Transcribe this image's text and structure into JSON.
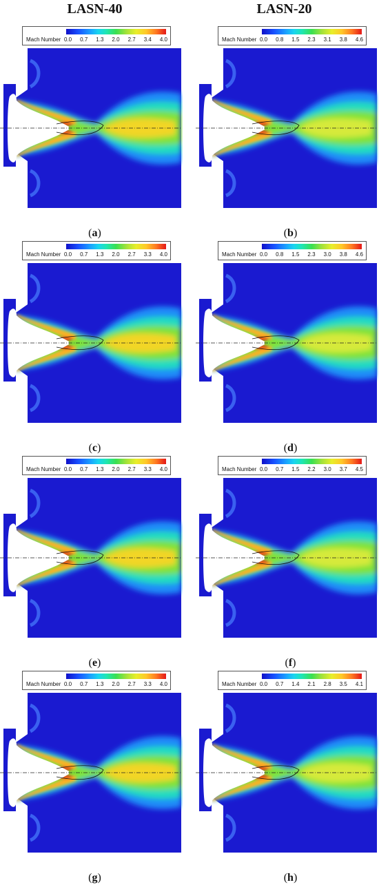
{
  "headers": [
    "LASN-40",
    "LASN-20"
  ],
  "colorbar_title": "Mach Number",
  "panels": [
    {
      "caption": "a",
      "ticks": [
        "0.0",
        "0.7",
        "1.3",
        "2.0",
        "2.7",
        "3.4",
        "4.0"
      ]
    },
    {
      "caption": "b",
      "ticks": [
        "0.0",
        "0.8",
        "1.5",
        "2.3",
        "3.1",
        "3.8",
        "4.6"
      ]
    },
    {
      "caption": "c",
      "ticks": [
        "0.0",
        "0.7",
        "1.3",
        "2.0",
        "2.7",
        "3.3",
        "4.0"
      ]
    },
    {
      "caption": "d",
      "ticks": [
        "0.0",
        "0.8",
        "1.5",
        "2.3",
        "3.0",
        "3.8",
        "4.6"
      ]
    },
    {
      "caption": "e",
      "ticks": [
        "0.0",
        "0.7",
        "1.3",
        "2.0",
        "2.7",
        "3.3",
        "4.0"
      ]
    },
    {
      "caption": "f",
      "ticks": [
        "0.0",
        "0.7",
        "1.5",
        "2.2",
        "3.0",
        "3.7",
        "4.5"
      ]
    },
    {
      "caption": "g",
      "ticks": [
        "0.0",
        "0.7",
        "1.3",
        "2.0",
        "2.7",
        "3.3",
        "4.0"
      ]
    },
    {
      "caption": "h",
      "ticks": [
        "0.0",
        "0.7",
        "1.4",
        "2.1",
        "2.8",
        "3.5",
        "4.1"
      ]
    }
  ]
}
